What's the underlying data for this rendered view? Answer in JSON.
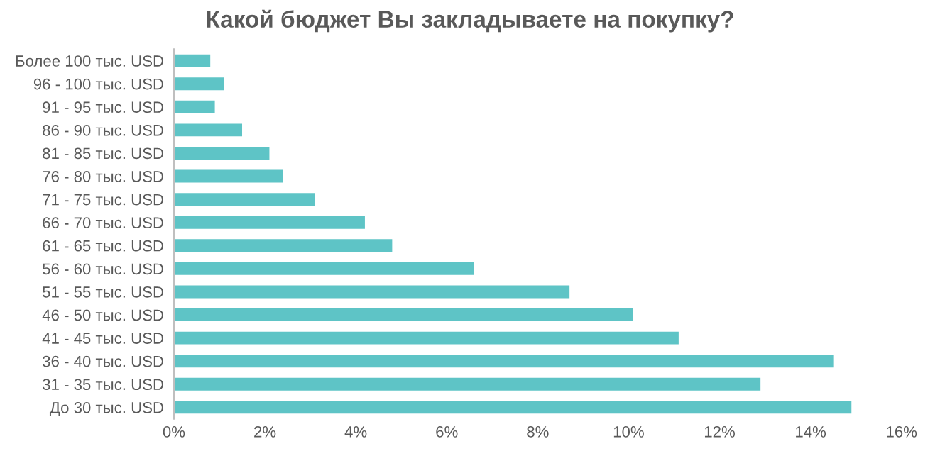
{
  "chart_data": {
    "type": "bar",
    "orientation": "horizontal",
    "title": "Какой бюджет Вы закладываете на покупку?",
    "categories": [
      "Более 100 тыс. USD",
      "96 - 100 тыс. USD",
      "91 - 95 тыс. USD",
      "86 - 90 тыс. USD",
      "81 - 85 тыс. USD",
      "76 - 80 тыс. USD",
      "71 - 75 тыс. USD",
      "66 - 70 тыс. USD",
      "61 - 65 тыс. USD",
      "56 - 60 тыс. USD",
      "51 - 55 тыс. USD",
      "46 - 50 тыс. USD",
      "41 - 45 тыс. USD",
      "36 - 40 тыс. USD",
      "31 - 35 тыс. USD",
      "До 30 тыс. USD"
    ],
    "values": [
      0.8,
      1.1,
      0.9,
      1.5,
      2.1,
      2.4,
      3.1,
      4.2,
      4.8,
      6.6,
      8.7,
      10.1,
      11.1,
      14.5,
      12.9,
      14.9
    ],
    "color": "#5ec4c6",
    "xlim": [
      0,
      16
    ],
    "xticks": [
      {
        "value": 0,
        "label": "0%"
      },
      {
        "value": 2,
        "label": "2%"
      },
      {
        "value": 4,
        "label": "4%"
      },
      {
        "value": 6,
        "label": "6%"
      },
      {
        "value": 8,
        "label": "8%"
      },
      {
        "value": 10,
        "label": "10%"
      },
      {
        "value": 12,
        "label": "12%"
      },
      {
        "value": 14,
        "label": "14%"
      },
      {
        "value": 16,
        "label": "16%"
      }
    ],
    "grid": false
  }
}
